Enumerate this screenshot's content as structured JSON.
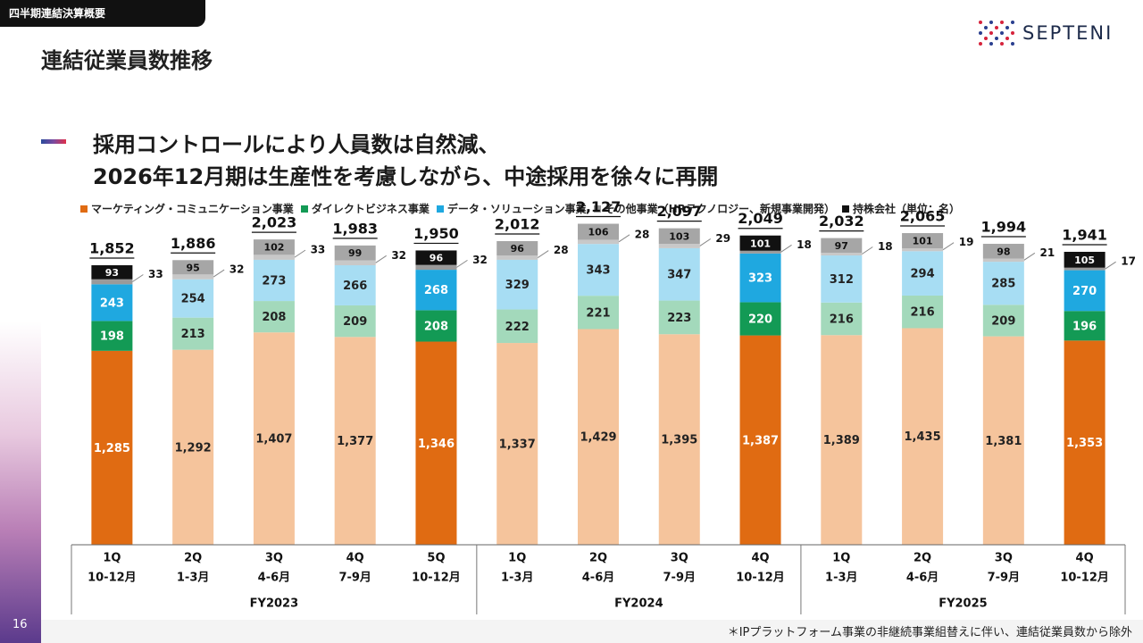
{
  "header": {
    "section_tag": "四半期連結決算概要",
    "page_title": "連結従業員数推移",
    "logo_text": "SEPTENI",
    "headline_line1": "採用コントロールにより人員数は自然減、",
    "headline_line2": "2026年12月期は生産性を考慮しながら、中途採用を徐々に再開"
  },
  "footer": {
    "slide_number": "16",
    "footnote": "＊IPプラットフォーム事業の非継続事業組替えに伴い、連結従業員数から除外"
  },
  "legend": [
    {
      "label": "マーケティング・コミュニケーション事業",
      "color": "#e06b12"
    },
    {
      "label": "ダイレクトビジネス事業",
      "color": "#139a55"
    },
    {
      "label": "データ・ソリューション事業",
      "color": "#1fa8e0"
    },
    {
      "label": "その他事業（HRテクノロジー、新規事業開発）",
      "color": "#9a9a9a"
    },
    {
      "label": "持株会社（単位：名）",
      "color": "#111111"
    }
  ],
  "chart_data": {
    "type": "bar",
    "stacked": true,
    "unit": "名",
    "categories": [
      {
        "quarter": "1Q",
        "months": "10-12月"
      },
      {
        "quarter": "2Q",
        "months": "1-3月"
      },
      {
        "quarter": "3Q",
        "months": "4-6月"
      },
      {
        "quarter": "4Q",
        "months": "7-9月"
      },
      {
        "quarter": "5Q",
        "months": "10-12月"
      },
      {
        "quarter": "1Q",
        "months": "1-3月"
      },
      {
        "quarter": "2Q",
        "months": "4-6月"
      },
      {
        "quarter": "3Q",
        "months": "7-9月"
      },
      {
        "quarter": "4Q",
        "months": "10-12月"
      },
      {
        "quarter": "1Q",
        "months": "1-3月"
      },
      {
        "quarter": "2Q",
        "months": "4-6月"
      },
      {
        "quarter": "3Q",
        "months": "7-9月"
      },
      {
        "quarter": "4Q",
        "months": "10-12月"
      }
    ],
    "groups": [
      {
        "label": "FY2023",
        "count": 5
      },
      {
        "label": "FY2024",
        "count": 4
      },
      {
        "label": "FY2025",
        "count": 4
      }
    ],
    "highlighted": [
      true,
      false,
      false,
      false,
      true,
      false,
      false,
      false,
      true,
      false,
      false,
      false,
      true
    ],
    "series": [
      {
        "name": "マーケティング・コミュニケーション事業",
        "color": "#e06b12",
        "faded_color": "#f5c49c",
        "values": [
          1285,
          1292,
          1407,
          1377,
          1346,
          1337,
          1429,
          1395,
          1387,
          1389,
          1435,
          1381,
          1353
        ]
      },
      {
        "name": "ダイレクトビジネス事業",
        "color": "#139a55",
        "faded_color": "#a3d9bb",
        "values": [
          198,
          213,
          208,
          209,
          208,
          222,
          221,
          223,
          220,
          216,
          216,
          209,
          196
        ]
      },
      {
        "name": "データ・ソリューション事業",
        "color": "#1fa8e0",
        "faded_color": "#a7ddf3",
        "values": [
          243,
          254,
          273,
          266,
          268,
          329,
          343,
          347,
          323,
          312,
          294,
          285,
          270
        ]
      },
      {
        "name": "その他事業",
        "color": "#9a9a9a",
        "faded_color": "#c8c8c8",
        "values": [
          33,
          32,
          33,
          32,
          32,
          28,
          28,
          29,
          18,
          18,
          19,
          21,
          17
        ]
      },
      {
        "name": "持株会社",
        "color": "#111111",
        "faded_color": "#a6a6a6",
        "values": [
          93,
          95,
          102,
          99,
          96,
          96,
          106,
          103,
          101,
          97,
          101,
          98,
          105
        ]
      }
    ],
    "totals": [
      "1,852",
      "1,886",
      "2,023",
      "1,983",
      "1,950",
      "2,012",
      "2,127",
      "2,097",
      "2,049",
      "2,032",
      "2,065",
      "1,994",
      "1,941"
    ],
    "value_labels": [
      [
        "1,285",
        "1,292",
        "1,407",
        "1,377",
        "1,346",
        "1,337",
        "1,429",
        "1,395",
        "1,387",
        "1,389",
        "1,435",
        "1,381",
        "1,353"
      ],
      [
        "198",
        "213",
        "208",
        "209",
        "208",
        "222",
        "221",
        "223",
        "220",
        "216",
        "216",
        "209",
        "196"
      ],
      [
        "243",
        "254",
        "273",
        "266",
        "268",
        "329",
        "343",
        "347",
        "323",
        "312",
        "294",
        "285",
        "270"
      ],
      [
        "33",
        "32",
        "33",
        "32",
        "32",
        "28",
        "28",
        "29",
        "18",
        "18",
        "19",
        "21",
        "17"
      ],
      [
        "93",
        "95",
        "102",
        "99",
        "96",
        "96",
        "106",
        "103",
        "101",
        "97",
        "101",
        "98",
        "105"
      ]
    ]
  }
}
